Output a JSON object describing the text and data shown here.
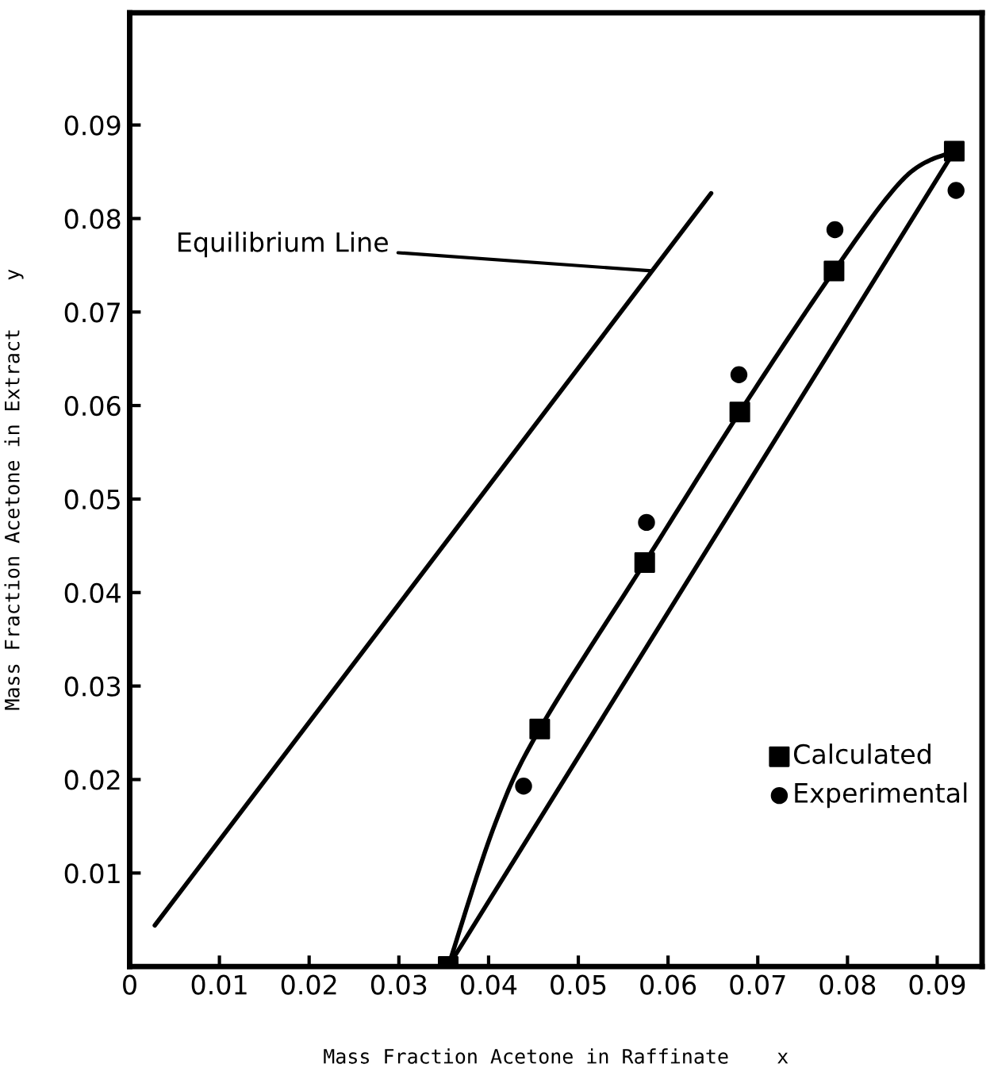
{
  "chart_data": {
    "type": "scatter",
    "xlabel": "Mass Fraction Acetone in Raffinate    x",
    "ylabel": "Mass Fraction Acetone in Extract    y",
    "xlim": [
      0,
      0.095
    ],
    "ylim": [
      0,
      0.102
    ],
    "xticks": [
      0,
      0.01,
      0.02,
      0.03,
      0.04,
      0.05,
      0.06,
      0.07,
      0.08,
      0.09
    ],
    "yticks": [
      0.01,
      0.02,
      0.03,
      0.04,
      0.05,
      0.06,
      0.07,
      0.08,
      0.09
    ],
    "grid": false,
    "legend": "center right",
    "series": [
      {
        "type": "line",
        "color": "#000000",
        "marker": "none",
        "x": [
          0.0028,
          0.0648
        ],
        "values": [
          0.0044,
          0.0827
        ]
      },
      {
        "type": "line",
        "color": "#000000",
        "marker": "none",
        "x": [
          0.0355,
          0.0919
        ],
        "values": [
          0.0,
          0.0872
        ]
      },
      {
        "type": "line",
        "color": "#000000",
        "marker": "none",
        "x": [
          0.0355,
          0.0407,
          0.0457,
          0.0574,
          0.068,
          0.0785,
          0.0864,
          0.0919
        ],
        "values": [
          0.0,
          0.0152,
          0.0254,
          0.0432,
          0.0593,
          0.0744,
          0.0844,
          0.0872
        ]
      },
      {
        "name": "Calculated",
        "color": "#000000",
        "marker": "square",
        "x": [
          0.0355,
          0.0457,
          0.0574,
          0.068,
          0.0785,
          0.0919
        ],
        "values": [
          0.0,
          0.0254,
          0.0432,
          0.0593,
          0.0744,
          0.0872
        ]
      },
      {
        "name": "Experimental",
        "color": "#000000",
        "marker": "circle",
        "x": [
          0.0439,
          0.0576,
          0.0679,
          0.0786,
          0.0921
        ],
        "values": [
          0.0193,
          0.0475,
          0.0633,
          0.0788,
          0.083
        ]
      }
    ],
    "annotations": [
      {
        "text": "Equilibrium Line",
        "x": 0.0582,
        "y": 0.0744
      }
    ]
  }
}
